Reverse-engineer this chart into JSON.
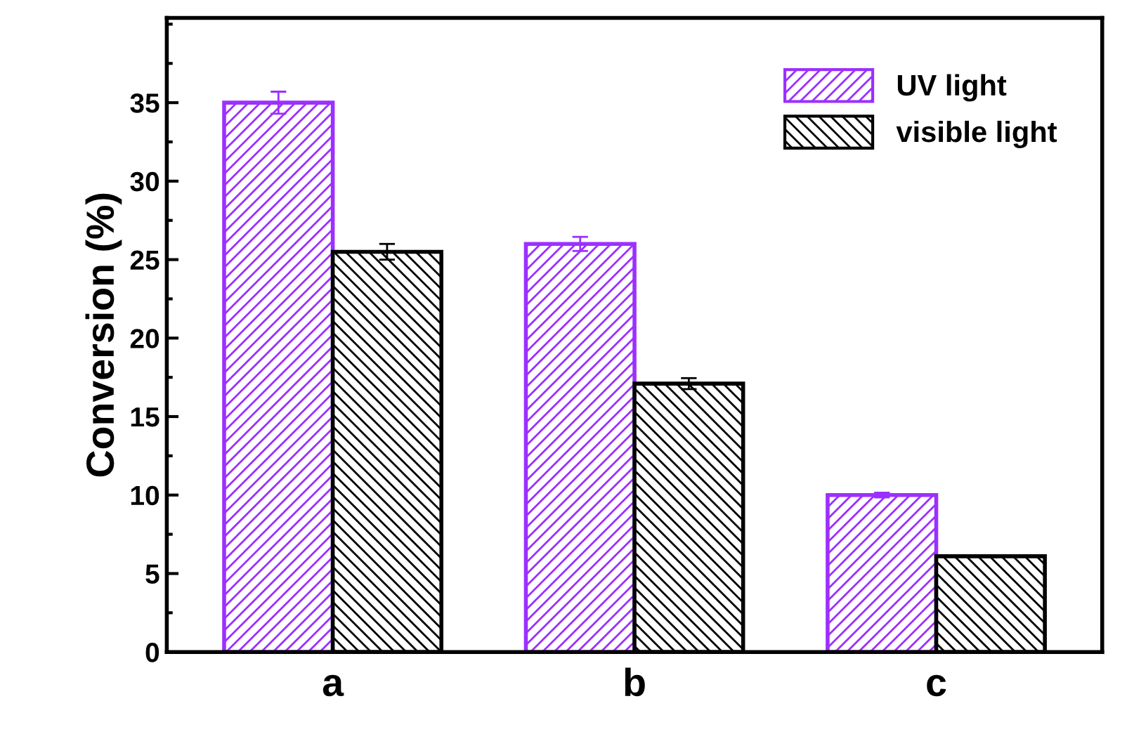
{
  "chart_data": {
    "type": "bar",
    "ylabel": "Conversion (%)",
    "categories": [
      "a",
      "b",
      "c"
    ],
    "series": [
      {
        "name": "UV light",
        "color": "#9b30ff",
        "values": [
          35,
          26,
          10
        ],
        "errors": [
          0.7,
          0.45,
          0.15
        ]
      },
      {
        "name": "visible light",
        "color": "#000000",
        "values": [
          25.5,
          17.1,
          6.1
        ],
        "errors": [
          0.5,
          0.35,
          0.05
        ]
      }
    ],
    "ylim": [
      0,
      40.4
    ],
    "yticks": [
      0,
      5,
      10,
      15,
      20,
      25,
      30,
      35
    ],
    "grid": false,
    "legend": "top right"
  }
}
